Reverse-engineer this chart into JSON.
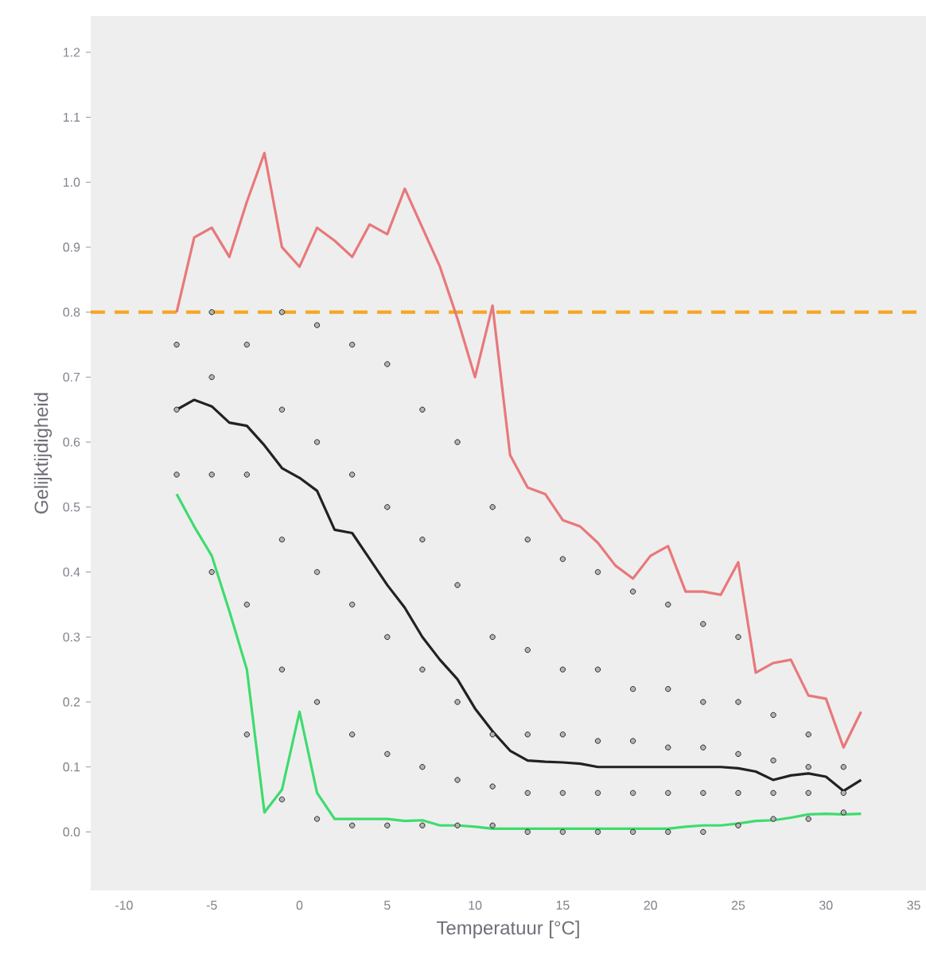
{
  "chart_data": {
    "type": "line",
    "xlabel": "Temperatuur [°C]",
    "ylabel": "Gelijktijdigheid",
    "x": [
      -7,
      -6,
      -5,
      -4,
      -3,
      -2,
      -1,
      0,
      1,
      2,
      3,
      4,
      5,
      6,
      7,
      8,
      9,
      10,
      11,
      12,
      13,
      14,
      15,
      16,
      17,
      18,
      19,
      20,
      21,
      22,
      23,
      24,
      25,
      26,
      27,
      28,
      29,
      30,
      31,
      32
    ],
    "series": [
      {
        "type": "scatter",
        "color": "#b4b4b4",
        "x": [
          -7,
          -7,
          -7,
          -5,
          -5,
          -5,
          -5,
          -3,
          -3,
          -3,
          -3,
          -1,
          -1,
          -1,
          -1,
          -1,
          1,
          1,
          1,
          1,
          1,
          3,
          3,
          3,
          3,
          3,
          5,
          5,
          5,
          5,
          5,
          7,
          7,
          7,
          7,
          7,
          9,
          9,
          9,
          9,
          9,
          11,
          11,
          11,
          11,
          11,
          13,
          13,
          13,
          13,
          13,
          15,
          15,
          15,
          15,
          15,
          17,
          17,
          17,
          17,
          17,
          19,
          19,
          19,
          19,
          19,
          21,
          21,
          21,
          21,
          21,
          23,
          23,
          23,
          23,
          23,
          25,
          25,
          25,
          25,
          25,
          27,
          27,
          27,
          27,
          29,
          29,
          29,
          29,
          31,
          31,
          31
        ],
        "values": [
          0.55,
          0.65,
          0.75,
          0.4,
          0.55,
          0.7,
          0.8,
          0.15,
          0.35,
          0.55,
          0.75,
          0.05,
          0.25,
          0.45,
          0.65,
          0.8,
          0.02,
          0.2,
          0.4,
          0.6,
          0.78,
          0.01,
          0.15,
          0.35,
          0.55,
          0.75,
          0.01,
          0.12,
          0.3,
          0.5,
          0.72,
          0.01,
          0.1,
          0.25,
          0.45,
          0.65,
          0.01,
          0.08,
          0.2,
          0.38,
          0.6,
          0.01,
          0.07,
          0.15,
          0.3,
          0.5,
          0.0,
          0.06,
          0.15,
          0.28,
          0.45,
          0.0,
          0.06,
          0.15,
          0.25,
          0.42,
          0.0,
          0.06,
          0.14,
          0.25,
          0.4,
          0.0,
          0.06,
          0.14,
          0.22,
          0.37,
          0.0,
          0.06,
          0.13,
          0.22,
          0.35,
          0.0,
          0.06,
          0.13,
          0.2,
          0.32,
          0.01,
          0.06,
          0.12,
          0.2,
          0.3,
          0.02,
          0.06,
          0.11,
          0.18,
          0.02,
          0.06,
          0.1,
          0.15,
          0.03,
          0.06,
          0.1
        ]
      },
      {
        "color": "#e8787a",
        "values": [
          0.8,
          0.915,
          0.93,
          0.885,
          0.97,
          1.045,
          0.9,
          0.87,
          0.93,
          0.91,
          0.885,
          0.935,
          0.92,
          0.99,
          0.93,
          0.87,
          0.79,
          0.7,
          0.81,
          0.58,
          0.53,
          0.52,
          0.48,
          0.47,
          0.445,
          0.41,
          0.39,
          0.425,
          0.44,
          0.37,
          0.37,
          0.365,
          0.415,
          0.245,
          0.26,
          0.265,
          0.21,
          0.205,
          0.13,
          0.185
        ]
      },
      {
        "color": "#222222",
        "values": [
          0.65,
          0.665,
          0.655,
          0.63,
          0.625,
          0.595,
          0.56,
          0.545,
          0.525,
          0.465,
          0.46,
          0.42,
          0.38,
          0.345,
          0.3,
          0.265,
          0.235,
          0.19,
          0.155,
          0.125,
          0.11,
          0.108,
          0.107,
          0.105,
          0.1,
          0.1,
          0.1,
          0.1,
          0.1,
          0.1,
          0.1,
          0.1,
          0.098,
          0.093,
          0.08,
          0.087,
          0.09,
          0.085,
          0.063,
          0.08
        ]
      },
      {
        "color": "#3ddc6e",
        "values": [
          0.52,
          0.47,
          0.425,
          0.34,
          0.25,
          0.03,
          0.065,
          0.185,
          0.06,
          0.02,
          0.02,
          0.02,
          0.02,
          0.017,
          0.018,
          0.01,
          0.01,
          0.008,
          0.005,
          0.005,
          0.005,
          0.005,
          0.005,
          0.005,
          0.005,
          0.005,
          0.005,
          0.005,
          0.005,
          0.008,
          0.01,
          0.01,
          0.013,
          0.017,
          0.018,
          0.022,
          0.027,
          0.028,
          0.027,
          0.028
        ]
      }
    ],
    "ref_lines": [
      {
        "axis": "y",
        "value": 0.8,
        "color": "#f5a623",
        "line_style": "dashed"
      }
    ],
    "xlim": [
      -11.9,
      35.7
    ],
    "ylim": [
      -0.09,
      1.256
    ],
    "xticks": [
      -10,
      -5,
      0,
      5,
      10,
      15,
      20,
      25,
      30,
      35
    ],
    "yticks": [
      {
        "value": 0.0,
        "label": "0.0"
      },
      {
        "value": 0.1,
        "label": "0.1"
      },
      {
        "value": 0.2,
        "label": "0.2"
      },
      {
        "value": 0.3,
        "label": "0.3"
      },
      {
        "value": 0.4,
        "label": "0.4"
      },
      {
        "value": 0.5,
        "label": "0.5"
      },
      {
        "value": 0.6,
        "label": "0.6"
      },
      {
        "value": 0.7,
        "label": "0.7"
      },
      {
        "value": 0.8,
        "label": "0.8"
      },
      {
        "value": 0.9,
        "label": "0.9"
      },
      {
        "value": 1.0,
        "label": "1.0"
      },
      {
        "value": 1.1,
        "label": "1.1"
      },
      {
        "value": 1.2,
        "label": "1.2"
      }
    ]
  }
}
